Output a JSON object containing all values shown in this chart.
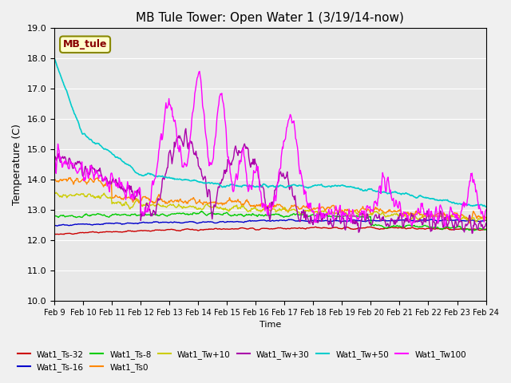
{
  "title": "MB Tule Tower: Open Water 1 (3/19/14-now)",
  "xlabel": "Time",
  "ylabel": "Temperature (C)",
  "ylim": [
    10.0,
    19.0
  ],
  "yticks": [
    10.0,
    11.0,
    12.0,
    13.0,
    14.0,
    15.0,
    16.0,
    17.0,
    18.0,
    19.0
  ],
  "xtick_labels": [
    "Feb 9",
    "Feb 10",
    "Feb 11",
    "Feb 12",
    "Feb 13",
    "Feb 14",
    "Feb 15",
    "Feb 16",
    "Feb 17",
    "Feb 18",
    "Feb 19",
    "Feb 20",
    "Feb 21",
    "Feb 22",
    "Feb 23",
    "Feb 24"
  ],
  "plot_bg": "#e8e8e8",
  "series_colors": {
    "Wat1_Ts-32": "#cc0000",
    "Wat1_Ts-16": "#0000cc",
    "Wat1_Ts-8": "#00cc00",
    "Wat1_Ts0": "#ff8800",
    "Wat1_Tw+10": "#cccc00",
    "Wat1_Tw+30": "#aa00aa",
    "Wat1_Tw+50": "#00cccc",
    "Wat1_Tw100": "#ff00ff"
  },
  "annotation_text": "MB_tule",
  "annotation_color": "#880000",
  "annotation_bg": "#ffffcc",
  "annotation_border": "#888800"
}
